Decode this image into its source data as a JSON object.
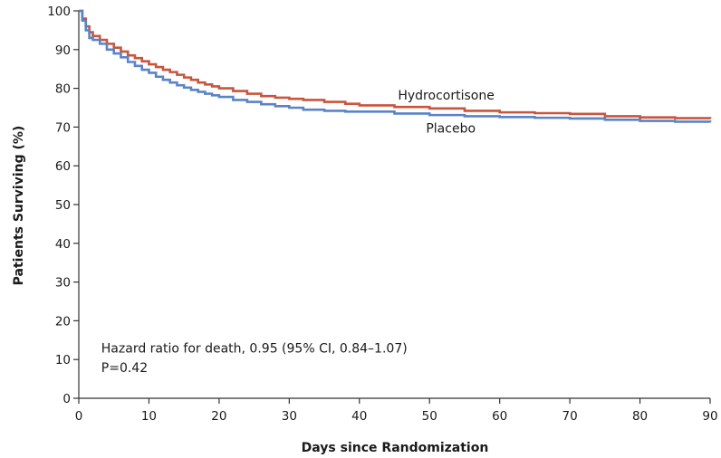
{
  "chart_data": {
    "type": "line",
    "step": true,
    "xlabel": "Days since Randomization",
    "ylabel": "Patients Surviving (%)",
    "xlim": [
      0,
      90
    ],
    "ylim": [
      0,
      100
    ],
    "xticks": [
      0,
      10,
      20,
      30,
      40,
      50,
      60,
      70,
      80,
      90
    ],
    "yticks": [
      0,
      10,
      20,
      30,
      40,
      50,
      60,
      70,
      80,
      90,
      100
    ],
    "grid": false,
    "series": [
      {
        "name": "Hydrocortisone",
        "color": "#c8553d",
        "x": [
          0,
          0.5,
          1,
          1.5,
          2,
          3,
          4,
          5,
          6,
          7,
          8,
          9,
          10,
          11,
          12,
          13,
          14,
          15,
          16,
          17,
          18,
          19,
          20,
          22,
          24,
          26,
          28,
          30,
          32,
          35,
          38,
          40,
          45,
          50,
          55,
          60,
          65,
          70,
          75,
          80,
          85,
          90
        ],
        "y": [
          100,
          98,
          96,
          94.5,
          93.5,
          92.5,
          91.5,
          90.5,
          89.5,
          88.5,
          87.8,
          87,
          86.2,
          85.5,
          84.8,
          84.2,
          83.5,
          82.8,
          82.2,
          81.5,
          81,
          80.5,
          80,
          79.3,
          78.6,
          78,
          77.6,
          77.3,
          77,
          76.5,
          76,
          75.6,
          75.2,
          74.8,
          74.2,
          73.8,
          73.6,
          73.4,
          72.8,
          72.5,
          72.3,
          72.1
        ]
      },
      {
        "name": "Placebo",
        "color": "#5a84c6",
        "x": [
          0,
          0.5,
          1,
          1.5,
          2,
          3,
          4,
          5,
          6,
          7,
          8,
          9,
          10,
          11,
          12,
          13,
          14,
          15,
          16,
          17,
          18,
          19,
          20,
          22,
          24,
          26,
          28,
          30,
          32,
          35,
          38,
          40,
          45,
          50,
          55,
          60,
          65,
          70,
          75,
          80,
          85,
          90
        ],
        "y": [
          100,
          97.5,
          95,
          93,
          92.5,
          91.5,
          90,
          89,
          88,
          86.8,
          85.8,
          84.8,
          84,
          83,
          82.2,
          81.5,
          80.8,
          80.2,
          79.6,
          79.1,
          78.6,
          78.2,
          77.8,
          77,
          76.5,
          75.9,
          75.4,
          75,
          74.5,
          74.2,
          74,
          74,
          73.5,
          73.1,
          72.8,
          72.6,
          72.4,
          72.2,
          71.9,
          71.6,
          71.4,
          71.2
        ]
      }
    ],
    "series_labels": [
      {
        "text": "Hydrocortisone",
        "x": 45.5,
        "y": 77.1
      },
      {
        "text": "Placebo",
        "x": 49.5,
        "y": 68.6
      }
    ],
    "annotations": [
      {
        "text": "Hazard ratio for death, 0.95 (95% CI, 0.84–1.07)",
        "x": 3.2,
        "y": 11.8
      },
      {
        "text": "P=0.42",
        "x": 3.2,
        "y": 6.8
      }
    ]
  }
}
